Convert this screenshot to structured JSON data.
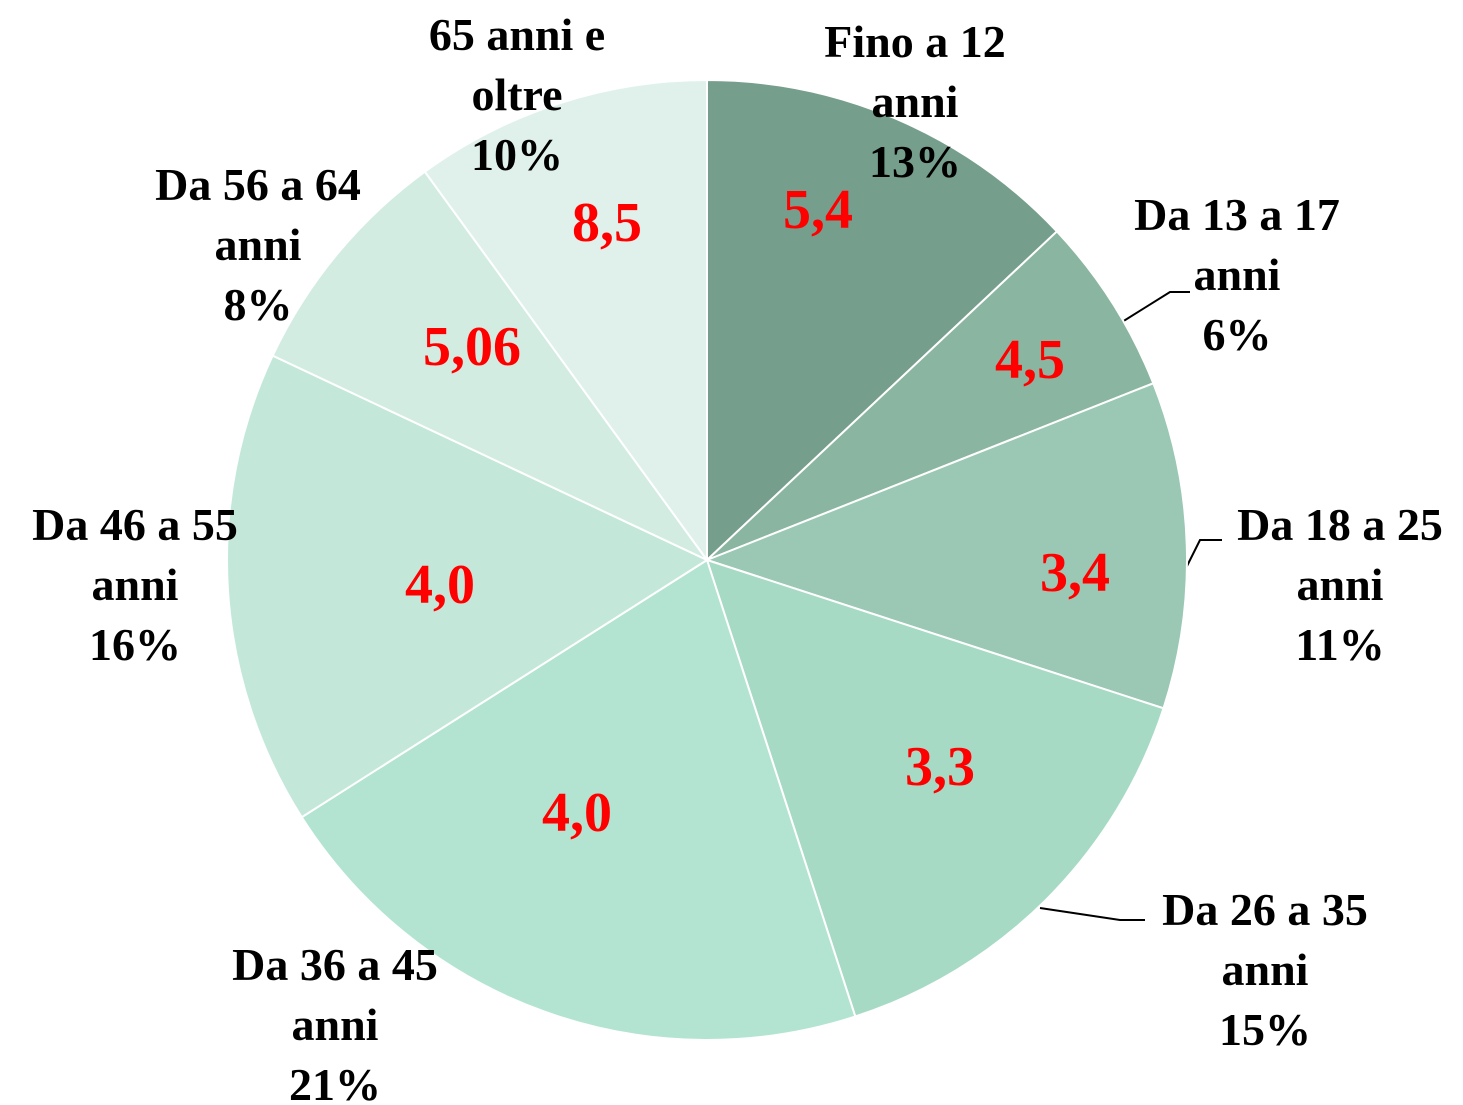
{
  "chart_data": {
    "type": "pie",
    "categories": [
      "Fino a 12 anni",
      "Da 13 a 17 anni",
      "Da 18 a 25 anni",
      "Da 26 a 35 anni",
      "Da 36 a 45 anni",
      "Da 46 a 55 anni",
      "Da 56 a 64 anni",
      "65 anni e oltre"
    ],
    "values": [
      13,
      6,
      11,
      15,
      21,
      16,
      8,
      10
    ],
    "value_labels": [
      "13%",
      "6%",
      "11%",
      "15%",
      "21%",
      "16%",
      "8%",
      "10%"
    ],
    "scores": [
      5.4,
      4.5,
      3.4,
      3.3,
      4.0,
      4.0,
      5.06,
      8.5
    ],
    "score_labels": [
      "5,4",
      "4,5",
      "3,4",
      "3,3",
      "4,0",
      "4,0",
      "5,06",
      "8,5"
    ],
    "colors": [
      "#769e8c",
      "#8ab5a1",
      "#9ac8b4",
      "#a7dac5",
      "#b3e4d1",
      "#c3e8da",
      "#d3ece2",
      "#dff1ea"
    ]
  }
}
